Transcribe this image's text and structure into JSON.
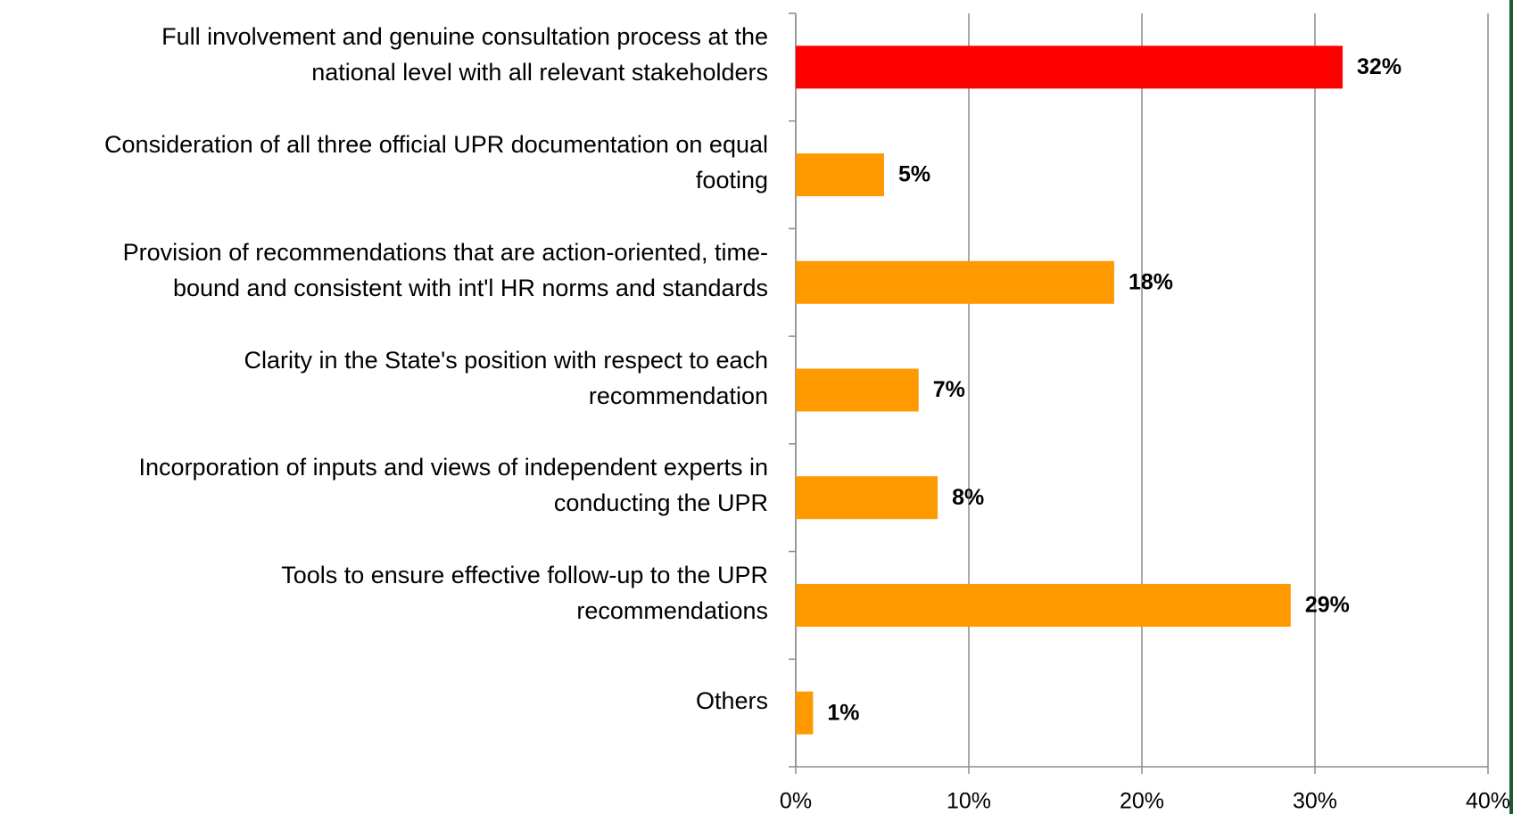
{
  "chart_data": {
    "type": "hbar",
    "categories": [
      "Full involvement and genuine consultation process at the\nnational level with all relevant stakeholders",
      "Consideration of all three official UPR documentation on equal\nfooting",
      "Provision of recommendations that are action-oriented, time-\nbound and consistent with int'l HR norms and standards",
      "Clarity in the State's position with respect to each\nrecommendation",
      "Incorporation of inputs and views of independent experts in\nconducting the UPR",
      "Tools to ensure effective follow-up to the UPR\nrecommendations",
      "Others"
    ],
    "values": [
      31.6,
      5.1,
      18.4,
      7.1,
      8.2,
      28.6,
      1.0
    ],
    "value_labels": [
      "32%",
      "5%",
      "18%",
      "7%",
      "8%",
      "29%",
      "1%"
    ],
    "colors": [
      "#ff0000",
      "#ff9900",
      "#ff9900",
      "#ff9900",
      "#ff9900",
      "#ff9900",
      "#ff9900"
    ],
    "xlim": [
      0,
      40
    ],
    "xticks": [
      {
        "value": 0,
        "label": "0%"
      },
      {
        "value": 10,
        "label": "10%"
      },
      {
        "value": 20,
        "label": "20%"
      },
      {
        "value": 30,
        "label": "30%"
      },
      {
        "value": 40,
        "label": "40%"
      }
    ],
    "grid": true
  }
}
